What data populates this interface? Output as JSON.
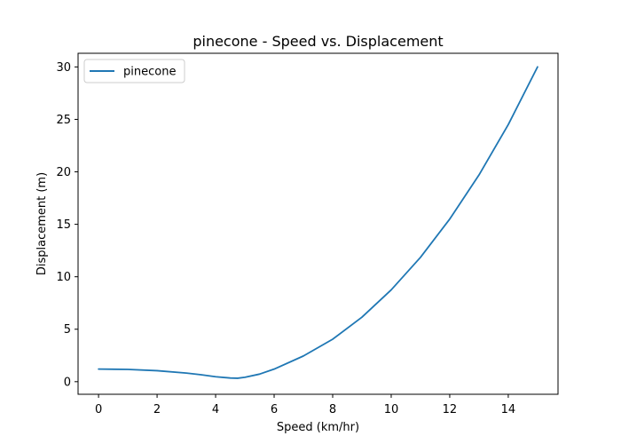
{
  "chart_data": {
    "type": "line",
    "title": "pinecone - Speed vs. Displacement",
    "xlabel": "Speed (km/hr)",
    "ylabel": "Displacement (m)",
    "xlim": [
      -0.7,
      15.7
    ],
    "ylim": [
      -1.2,
      31.3
    ],
    "xticks": [
      0,
      2,
      4,
      6,
      8,
      10,
      12,
      14
    ],
    "yticks": [
      0,
      5,
      10,
      15,
      20,
      25,
      30
    ],
    "grid": false,
    "legend": "top-left",
    "series": [
      {
        "name": "pinecone",
        "color": "#1f77b4",
        "x": [
          0,
          1,
          2,
          3,
          3.5,
          4,
          4.5,
          4.75,
          5,
          5.5,
          6,
          7,
          8,
          9,
          10,
          11,
          12,
          13,
          14,
          15
        ],
        "y": [
          1.2,
          1.17,
          1.05,
          0.82,
          0.66,
          0.47,
          0.35,
          0.33,
          0.42,
          0.72,
          1.2,
          2.45,
          4.05,
          6.15,
          8.75,
          11.85,
          15.5,
          19.7,
          24.5,
          30.0
        ]
      }
    ]
  }
}
